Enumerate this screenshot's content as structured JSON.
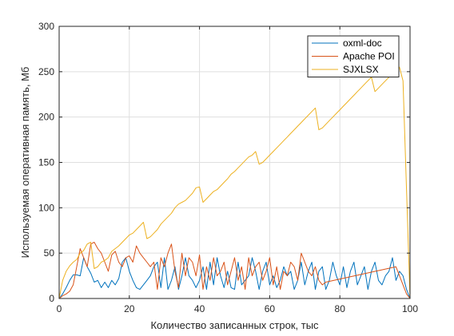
{
  "chart_data": {
    "type": "line",
    "title": "",
    "xlabel": "Количество записанных строк, тыс",
    "ylabel": "Используемая оперативная память, Мб",
    "xlim": [
      0,
      100
    ],
    "ylim": [
      0,
      300
    ],
    "xticks": [
      0,
      20,
      40,
      60,
      80,
      100
    ],
    "yticks": [
      0,
      50,
      100,
      150,
      200,
      250,
      300
    ],
    "grid": true,
    "legend_position": "top-right",
    "series": [
      {
        "name": "oxml-doc",
        "color": "#0072BD",
        "x": [
          0,
          1,
          2,
          3,
          4,
          5,
          6,
          7,
          8,
          9,
          10,
          11,
          12,
          13,
          14,
          15,
          16,
          17,
          18,
          19,
          20,
          21,
          22,
          23,
          24,
          25,
          26,
          27,
          28,
          29,
          30,
          31,
          32,
          33,
          34,
          35,
          36,
          37,
          38,
          39,
          40,
          41,
          42,
          43,
          44,
          45,
          46,
          47,
          48,
          49,
          50,
          51,
          52,
          53,
          54,
          55,
          56,
          57,
          58,
          59,
          60,
          61,
          62,
          63,
          64,
          65,
          66,
          67,
          68,
          69,
          70,
          71,
          72,
          73,
          74,
          75,
          76,
          77,
          78,
          79,
          80,
          81,
          82,
          83,
          84,
          85,
          86,
          87,
          88,
          89,
          90,
          91,
          92,
          93,
          94,
          95,
          96,
          97,
          98,
          99,
          100
        ],
        "y": [
          0,
          5,
          12,
          20,
          26,
          26,
          25,
          45,
          35,
          28,
          18,
          20,
          12,
          18,
          12,
          20,
          15,
          22,
          40,
          45,
          30,
          20,
          12,
          10,
          15,
          20,
          25,
          35,
          40,
          12,
          45,
          10,
          20,
          35,
          10,
          25,
          45,
          25,
          20,
          12,
          20,
          35,
          10,
          40,
          15,
          45,
          25,
          12,
          30,
          12,
          10,
          40,
          15,
          20,
          25,
          45,
          30,
          10,
          30,
          40,
          15,
          25,
          12,
          20,
          35,
          25,
          30,
          10,
          20,
          40,
          15,
          30,
          40,
          10,
          30,
          35,
          10,
          20,
          40,
          25,
          15,
          35,
          12,
          30,
          40,
          15,
          25,
          35,
          10,
          30,
          40,
          20,
          15,
          25,
          30,
          45,
          20,
          30,
          25,
          10,
          0
        ]
      },
      {
        "name": "Apache POI",
        "color": "#D95319",
        "x": [
          0,
          1,
          2,
          3,
          4,
          5,
          6,
          7,
          8,
          9,
          10,
          11,
          12,
          13,
          14,
          15,
          16,
          17,
          18,
          19,
          20,
          21,
          22,
          23,
          24,
          25,
          26,
          27,
          28,
          29,
          30,
          31,
          32,
          33,
          34,
          35,
          36,
          37,
          38,
          39,
          40,
          41,
          42,
          43,
          44,
          45,
          46,
          47,
          48,
          49,
          50,
          51,
          52,
          53,
          54,
          55,
          56,
          57,
          58,
          59,
          60,
          61,
          62,
          63,
          64,
          65,
          66,
          67,
          68,
          69,
          70,
          71,
          72,
          73,
          74,
          75,
          76,
          96,
          97,
          98,
          99,
          100
        ],
        "y": [
          0,
          3,
          5,
          8,
          15,
          35,
          55,
          45,
          35,
          60,
          62,
          55,
          50,
          40,
          30,
          48,
          52,
          40,
          35,
          45,
          47,
          40,
          58,
          50,
          45,
          40,
          35,
          40,
          10,
          45,
          35,
          50,
          60,
          30,
          12,
          50,
          25,
          45,
          40,
          25,
          48,
          10,
          35,
          20,
          45,
          25,
          30,
          40,
          15,
          30,
          45,
          20,
          35,
          10,
          45,
          25,
          35,
          40,
          20,
          30,
          45,
          15,
          35,
          10,
          30,
          25,
          40,
          35,
          20,
          50,
          40,
          30,
          25,
          35,
          20,
          15,
          18,
          35,
          25,
          15,
          5,
          0
        ]
      },
      {
        "name": "SJXLSX",
        "color": "#EDB120",
        "x": [
          0,
          1,
          2,
          3,
          4,
          5,
          6,
          7,
          8,
          9,
          10,
          11,
          12,
          13,
          14,
          15,
          16,
          17,
          18,
          19,
          20,
          21,
          22,
          23,
          24,
          25,
          26,
          27,
          28,
          29,
          30,
          31,
          32,
          33,
          34,
          35,
          36,
          37,
          38,
          39,
          40,
          41,
          42,
          43,
          44,
          45,
          46,
          47,
          48,
          49,
          50,
          51,
          52,
          53,
          54,
          55,
          56,
          57,
          58,
          59,
          60,
          61,
          62,
          63,
          64,
          65,
          66,
          67,
          68,
          69,
          70,
          71,
          72,
          73,
          74,
          75,
          76,
          77,
          78,
          79,
          80,
          81,
          82,
          83,
          84,
          85,
          86,
          87,
          88,
          89,
          90,
          91,
          92,
          93,
          94,
          95,
          96,
          97,
          98,
          99,
          100
        ],
        "y": [
          0,
          20,
          30,
          36,
          40,
          43,
          50,
          53,
          60,
          62,
          33,
          35,
          40,
          42,
          45,
          52,
          55,
          58,
          62,
          66,
          70,
          72,
          76,
          80,
          84,
          66,
          68,
          72,
          76,
          82,
          86,
          90,
          94,
          100,
          104,
          106,
          108,
          112,
          116,
          122,
          123,
          106,
          110,
          114,
          118,
          120,
          124,
          128,
          132,
          137,
          140,
          144,
          148,
          152,
          156,
          158,
          162,
          148,
          150,
          154,
          158,
          162,
          166,
          170,
          174,
          178,
          182,
          186,
          190,
          194,
          198,
          202,
          206,
          210,
          186,
          188,
          192,
          196,
          200,
          204,
          208,
          212,
          216,
          220,
          224,
          228,
          232,
          236,
          240,
          244,
          228,
          232,
          236,
          240,
          244,
          248,
          252,
          255,
          240,
          120,
          0
        ]
      }
    ]
  }
}
